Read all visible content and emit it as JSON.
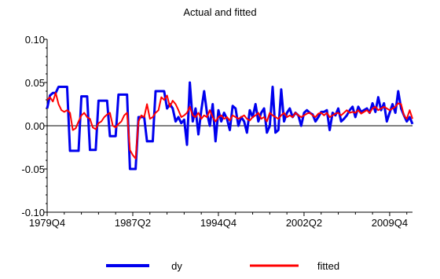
{
  "chart_data": {
    "type": "line",
    "title": "Actual and fitted",
    "xlabel": "",
    "ylabel": "",
    "x_tick_labels": [
      "1979Q4",
      "1987Q2",
      "1994Q4",
      "2002Q2",
      "2009Q4"
    ],
    "x_tick_index": [
      0,
      30,
      60,
      90,
      120
    ],
    "y_tick_labels": [
      "-0.10",
      "-0.05",
      "0.00",
      "0.05",
      "0.10"
    ],
    "y_ticks": [
      -0.1,
      -0.05,
      0.0,
      0.05,
      0.1
    ],
    "ylim": [
      -0.1,
      0.1
    ],
    "legend_position": "bottom",
    "grid": false,
    "series": [
      {
        "name": "dy",
        "color": "#0000ee",
        "values": [
          0.02,
          0.035,
          0.038,
          0.038,
          0.045,
          0.045,
          0.045,
          0.045,
          -0.029,
          -0.029,
          -0.029,
          -0.029,
          0.034,
          0.034,
          0.034,
          -0.028,
          -0.028,
          -0.028,
          0.029,
          0.029,
          0.029,
          0.029,
          -0.012,
          -0.012,
          -0.012,
          0.036,
          0.036,
          0.036,
          0.036,
          -0.05,
          -0.05,
          -0.05,
          0.01,
          0.01,
          0.01,
          -0.018,
          -0.018,
          -0.018,
          0.04,
          0.04,
          0.04,
          0.04,
          0.02,
          0.025,
          0.02,
          0.005,
          0.01,
          0.003,
          0.007,
          -0.022,
          0.05,
          0.005,
          0.02,
          -0.01,
          0.018,
          0.04,
          0.015,
          0.0,
          0.025,
          -0.018,
          0.018,
          0.005,
          0.015,
          0.008,
          -0.005,
          0.023,
          0.02,
          0.0,
          0.01,
          0.005,
          -0.008,
          0.018,
          0.01,
          0.025,
          0.005,
          0.015,
          0.02,
          -0.008,
          0.0,
          0.045,
          -0.008,
          -0.005,
          0.042,
          0.005,
          0.015,
          0.02,
          0.01,
          0.015,
          0.012,
          0.0,
          0.015,
          0.018,
          0.015,
          0.013,
          0.005,
          0.01,
          0.016,
          0.016,
          0.018,
          -0.005,
          0.015,
          0.012,
          0.02,
          0.005,
          0.008,
          0.012,
          0.018,
          0.022,
          0.01,
          0.022,
          0.016,
          0.018,
          0.02,
          0.015,
          0.026,
          0.016,
          0.033,
          0.018,
          0.026,
          0.005,
          0.015,
          0.025,
          0.015,
          0.04,
          0.02,
          0.012,
          0.005,
          0.01,
          0.002
        ]
      },
      {
        "name": "fitted",
        "color": "#ff0000",
        "values": [
          0.03,
          0.033,
          0.028,
          0.038,
          0.025,
          0.018,
          0.016,
          0.018,
          0.015,
          -0.005,
          -0.003,
          0.005,
          0.012,
          0.015,
          0.01,
          0.008,
          -0.002,
          -0.004,
          0.003,
          0.005,
          0.01,
          0.013,
          0.015,
          0.0,
          -0.002,
          0.002,
          0.005,
          0.012,
          0.015,
          -0.028,
          -0.034,
          -0.038,
          0.005,
          0.012,
          0.01,
          0.025,
          0.008,
          0.01,
          0.015,
          0.018,
          0.033,
          0.03,
          0.035,
          0.022,
          0.029,
          0.025,
          0.018,
          0.01,
          0.012,
          0.015,
          0.022,
          0.012,
          0.01,
          0.015,
          0.008,
          0.012,
          0.01,
          0.018,
          0.01,
          0.005,
          0.01,
          0.012,
          0.008,
          0.01,
          0.006,
          0.012,
          0.01,
          0.008,
          0.01,
          0.012,
          0.008,
          0.006,
          0.01,
          0.012,
          0.015,
          0.008,
          0.01,
          0.005,
          0.015,
          0.012,
          0.01,
          0.008,
          0.012,
          0.015,
          0.01,
          0.012,
          0.01,
          0.015,
          0.012,
          0.01,
          0.012,
          0.014,
          0.015,
          0.012,
          0.01,
          0.014,
          0.015,
          0.012,
          0.015,
          0.01,
          0.012,
          0.014,
          0.015,
          0.012,
          0.015,
          0.018,
          0.015,
          0.016,
          0.015,
          0.018,
          0.014,
          0.016,
          0.018,
          0.015,
          0.02,
          0.022,
          0.018,
          0.02,
          0.022,
          0.02,
          0.018,
          0.02,
          0.022,
          0.026,
          0.025,
          0.012,
          0.008,
          0.018,
          0.008
        ]
      }
    ]
  }
}
